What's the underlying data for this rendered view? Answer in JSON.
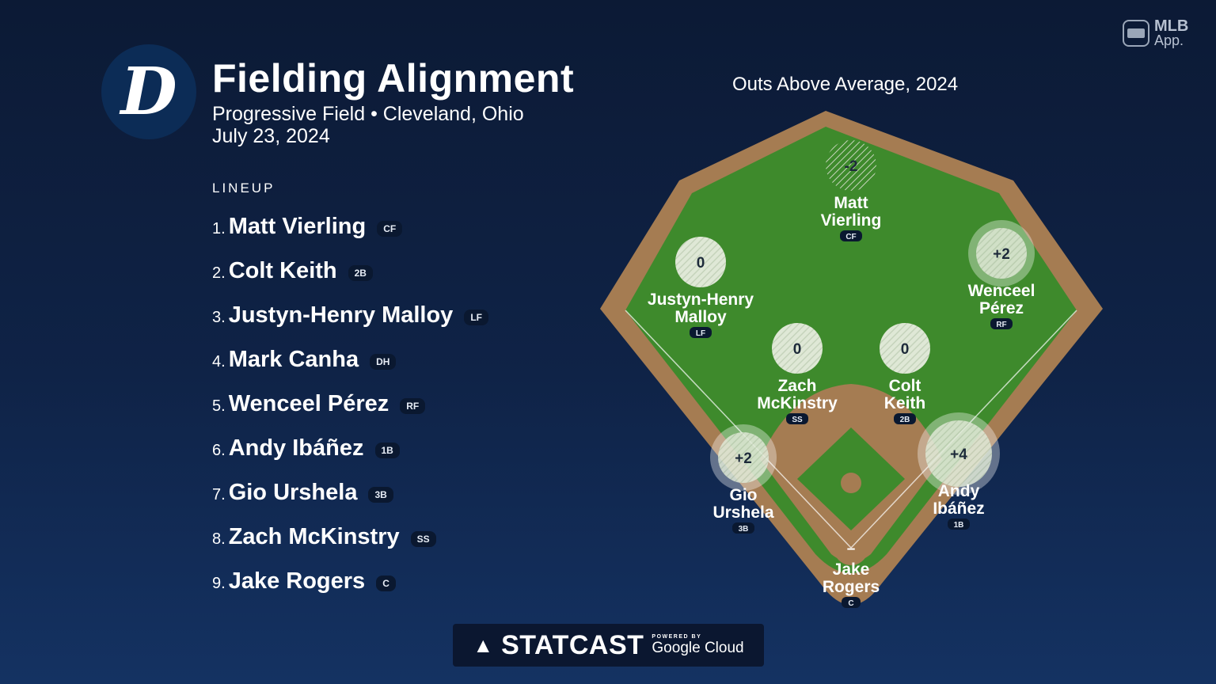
{
  "header": {
    "logo_letter": "D",
    "title": "Fielding Alignment",
    "venue": "Progressive Field • Cleveland, Ohio",
    "date": "July 23, 2024"
  },
  "lineup": {
    "heading": "LINEUP",
    "players": [
      {
        "num": "1.",
        "name": "Matt Vierling",
        "pos": "CF"
      },
      {
        "num": "2.",
        "name": "Colt Keith",
        "pos": "2B"
      },
      {
        "num": "3.",
        "name": "Justyn-Henry Malloy",
        "pos": "LF"
      },
      {
        "num": "4.",
        "name": "Mark Canha",
        "pos": "DH"
      },
      {
        "num": "5.",
        "name": "Wenceel Pérez",
        "pos": "RF"
      },
      {
        "num": "6.",
        "name": "Andy Ibáñez",
        "pos": "1B"
      },
      {
        "num": "7.",
        "name": "Gio Urshela",
        "pos": "3B"
      },
      {
        "num": "8.",
        "name": "Zach McKinstry",
        "pos": "SS"
      },
      {
        "num": "9.",
        "name": "Jake Rogers",
        "pos": "C"
      }
    ]
  },
  "field": {
    "heading": "Outs Above Average, 2024",
    "fielders": [
      {
        "first": "Matt",
        "last": "Vierling",
        "pos": "CF",
        "oaa": "-2",
        "oaa_value": -2
      },
      {
        "first": "Justyn-Henry",
        "last": "Malloy",
        "pos": "LF",
        "oaa": "0",
        "oaa_value": 0
      },
      {
        "first": "Wenceel",
        "last": "Pérez",
        "pos": "RF",
        "oaa": "+2",
        "oaa_value": 2
      },
      {
        "first": "Zach",
        "last": "McKinstry",
        "pos": "SS",
        "oaa": "0",
        "oaa_value": 0
      },
      {
        "first": "Colt",
        "last": "Keith",
        "pos": "2B",
        "oaa": "0",
        "oaa_value": 0
      },
      {
        "first": "Gio",
        "last": "Urshela",
        "pos": "3B",
        "oaa": "+2",
        "oaa_value": 2
      },
      {
        "first": "Andy",
        "last": "Ibáñez",
        "pos": "1B",
        "oaa": "+4",
        "oaa_value": 4
      },
      {
        "first": "Jake",
        "last": "Rogers",
        "pos": "C",
        "oaa": "–",
        "oaa_value": null
      }
    ]
  },
  "branding": {
    "mlb_app_line1": "MLB",
    "mlb_app_line2": "App.",
    "statcast": "STATCAST",
    "powered_by": "POWERED BY",
    "google_cloud": "Google Cloud"
  },
  "colors": {
    "background": "#0f2347",
    "grass": "#3e8a2c",
    "dirt": "#a57c52",
    "logo_navy": "#0c2c56"
  },
  "icons": [
    "tigers-d-logo",
    "mlb-app-icon",
    "statcast-batter-icon"
  ]
}
